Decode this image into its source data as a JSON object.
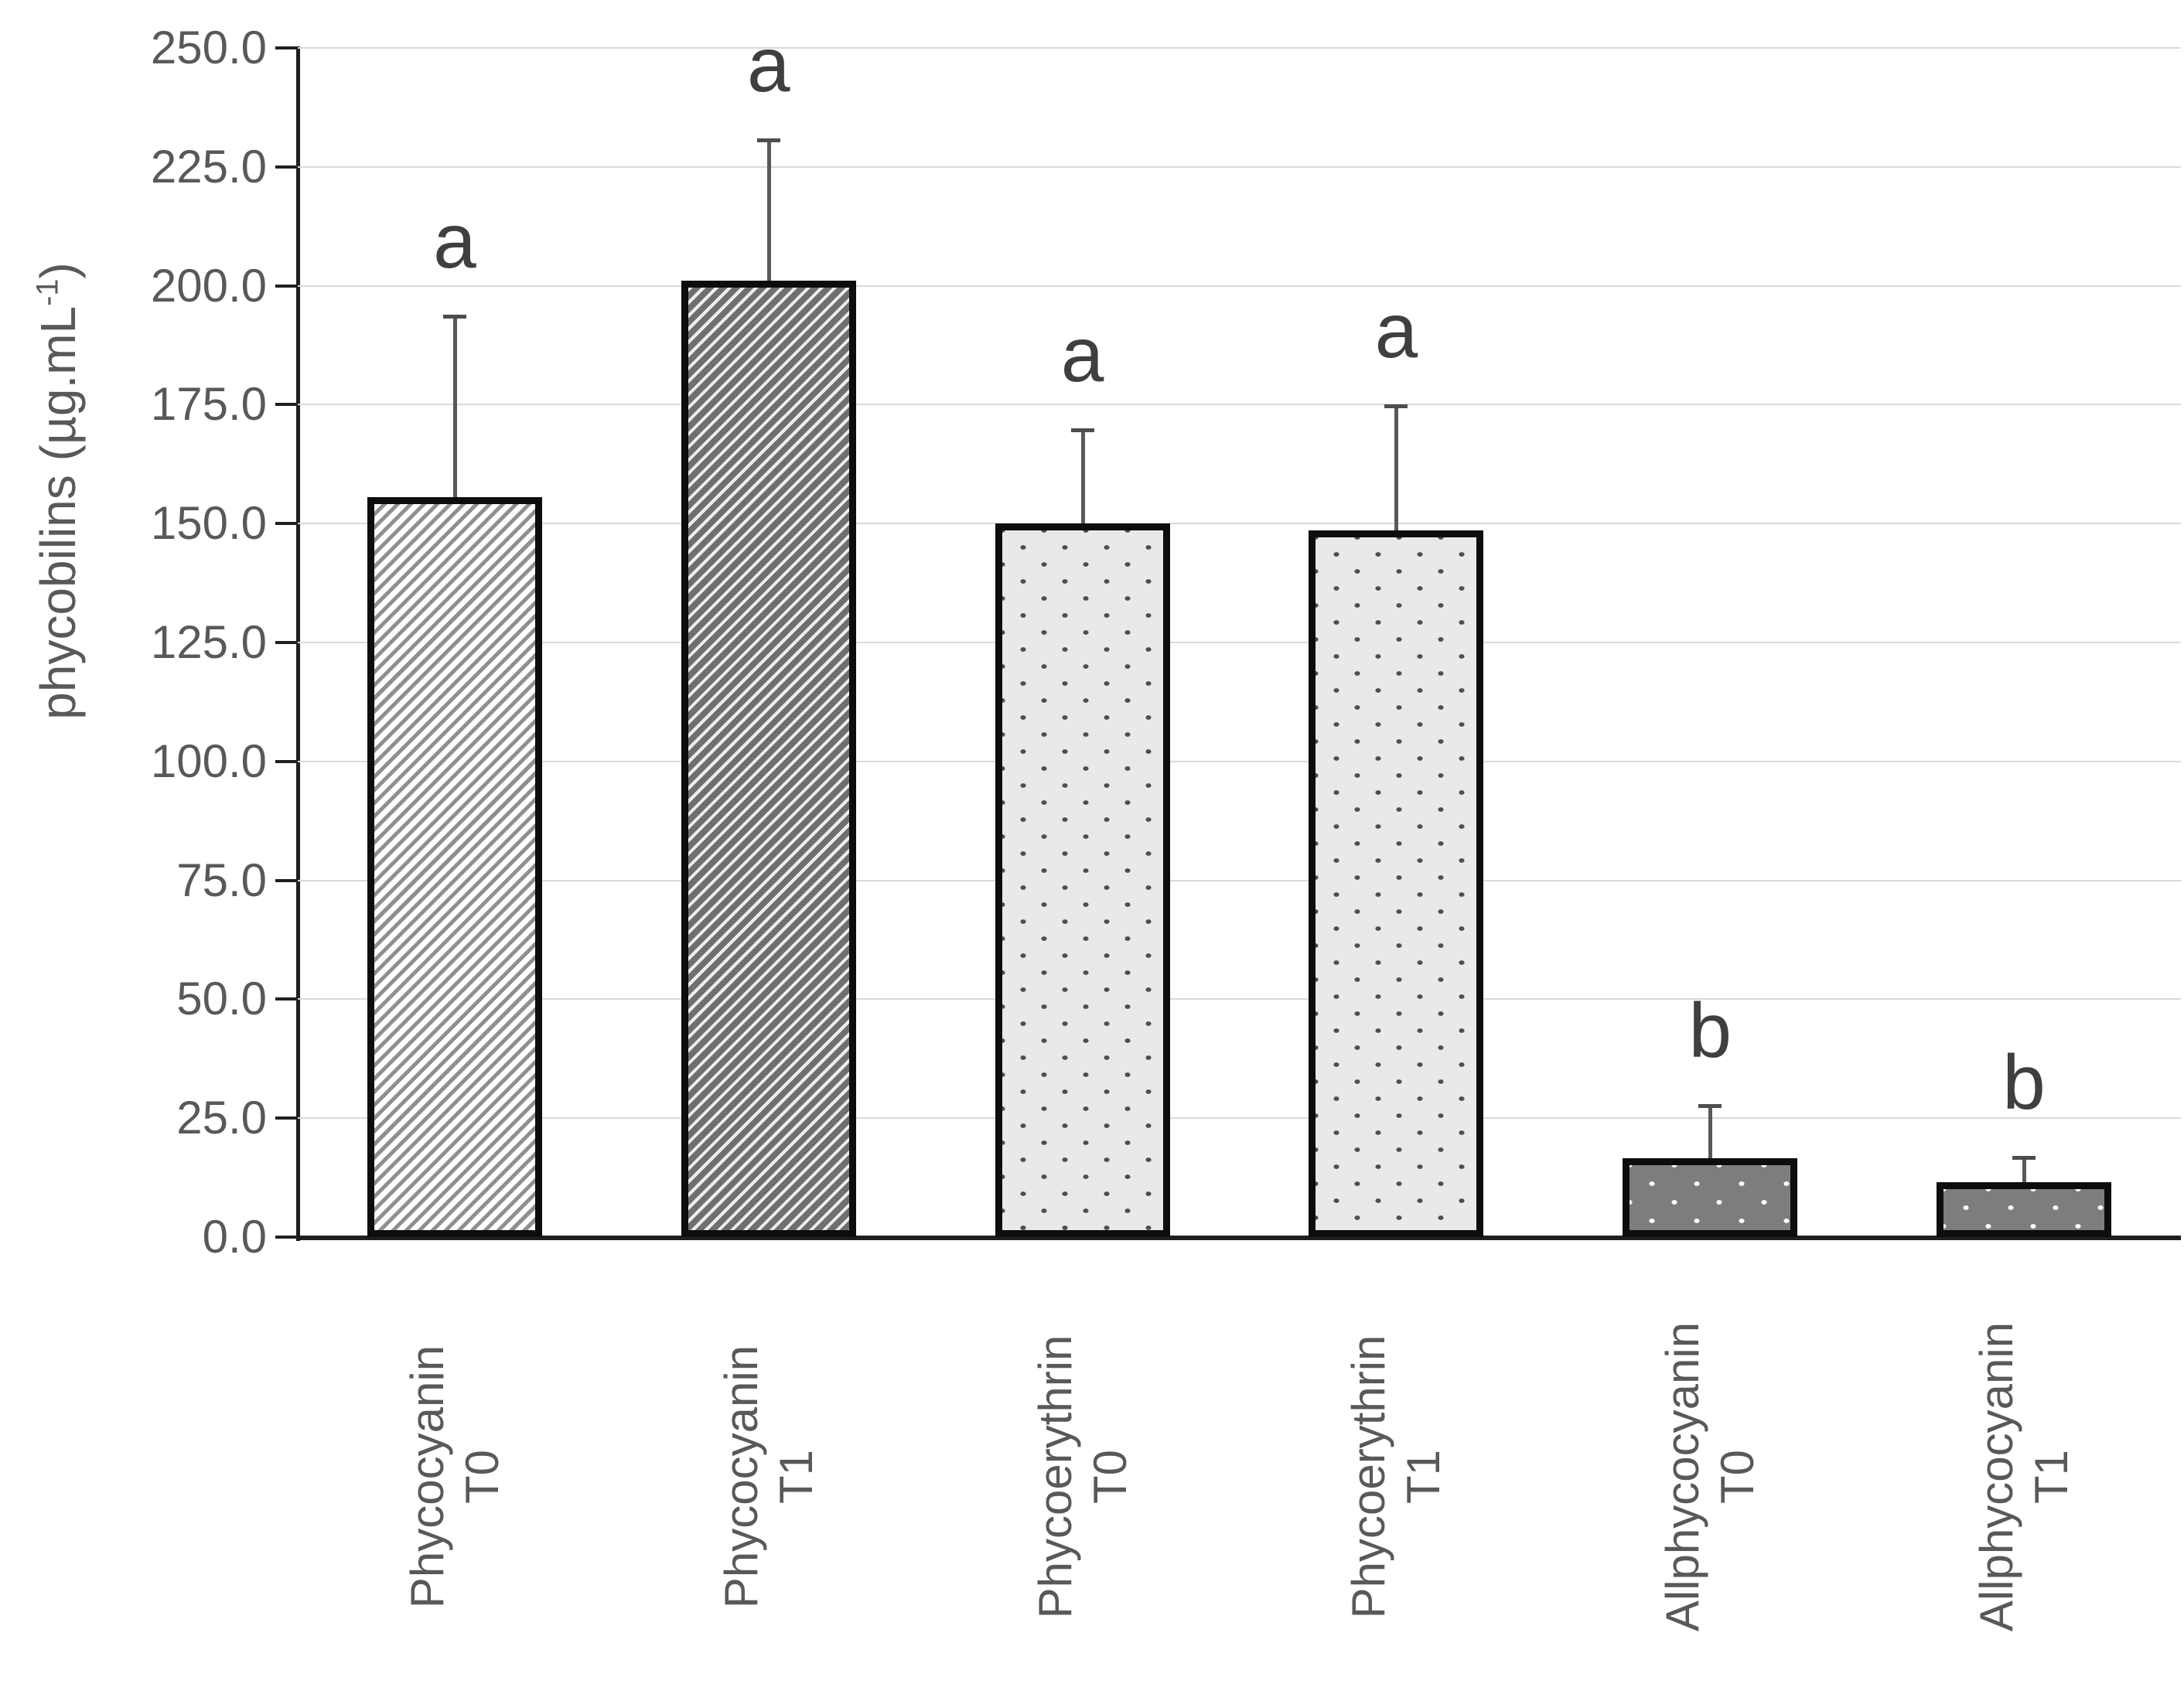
{
  "chart_data": {
    "type": "bar",
    "title": "",
    "ylabel": {
      "prefix": "phycobilins (µg.mL",
      "superscript": "-1",
      "suffix": ")"
    },
    "xlabel": "",
    "ylim": [
      0,
      250
    ],
    "ytick_step": 25,
    "yticks": [
      "0.0",
      "25.0",
      "50.0",
      "75.0",
      "100.0",
      "125.0",
      "150.0",
      "175.0",
      "200.0",
      "225.0",
      "250.0"
    ],
    "categories": [
      "Phycocyanin T0",
      "Phycocyanin T1",
      "Phycoerythrin T0",
      "Phycoerythrin T1",
      "Allphycocyanin T0",
      "Allphycocyanin T1"
    ],
    "category_lines": [
      [
        "Phycocyanin",
        "T0"
      ],
      [
        "Phycocyanin",
        "T1"
      ],
      [
        "Phycoerythrin",
        "T0"
      ],
      [
        "Phycoerythrin",
        "T1"
      ],
      [
        "Allphycocyanin",
        "T0"
      ],
      [
        "Allphycocyanin",
        "T1"
      ]
    ],
    "values": [
      155.5,
      201.0,
      150.0,
      148.5,
      16.5,
      11.5
    ],
    "error_plus": [
      38.5,
      30.0,
      20.0,
      26.5,
      11.5,
      5.5
    ],
    "sig_letters": [
      "a",
      "a",
      "a",
      "a",
      "b",
      "b"
    ],
    "bar_patterns": [
      "diag-light",
      "diag-dense",
      "dots-dark-on-light",
      "dots-dark-on-light",
      "dots-light-on-dark",
      "dots-light-on-dark"
    ],
    "grid": true,
    "legend": false,
    "colors": {
      "text": "#595959",
      "sig_letter": "#3f3f3f",
      "gridline": "#d9d9d9",
      "axis": "#1f1f1f",
      "bar_border": "#0d0d0d",
      "error_bar": "#595959"
    }
  }
}
